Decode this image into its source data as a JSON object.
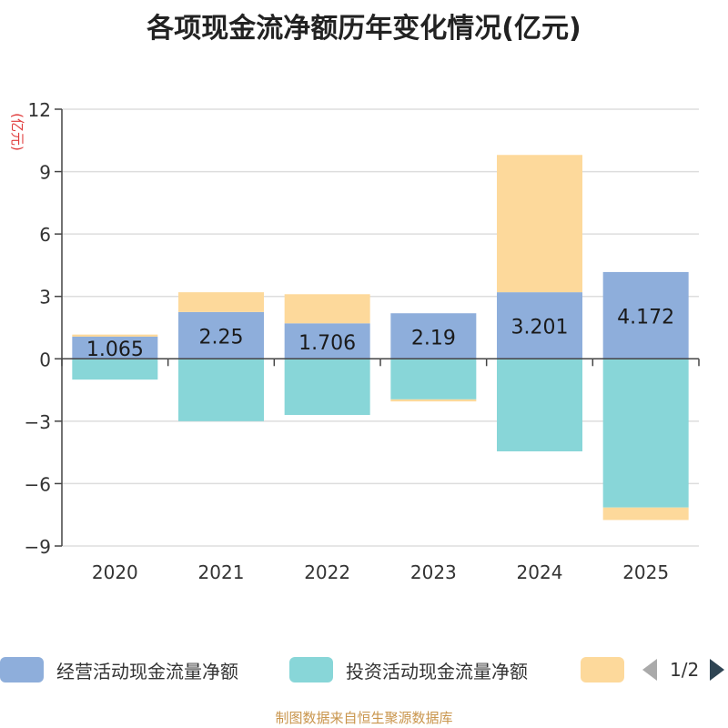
{
  "chart_data": {
    "type": "bar",
    "stacked": true,
    "title": "各项现金流净额历年变化情况(亿元)",
    "ylabel": "(亿元)",
    "categories": [
      "2020",
      "2021",
      "2022",
      "2023",
      "2024",
      "2025"
    ],
    "yticks": [
      12,
      9,
      6,
      3,
      0,
      -3,
      -6,
      -9
    ],
    "ytick_labels": [
      "12",
      "9",
      "6",
      "3",
      "0",
      "−3",
      "−6",
      "−9"
    ],
    "ylim": [
      -9,
      12
    ],
    "series": [
      {
        "name": "经营活动现金流量净额",
        "color": "#8eaedb",
        "values": [
          1.065,
          2.25,
          1.706,
          2.19,
          3.201,
          4.172
        ],
        "labels": [
          "1.065",
          "2.25",
          "1.706",
          "2.19",
          "3.201",
          "4.172"
        ]
      },
      {
        "name": "投资活动现金流量净额",
        "color": "#88d6d8",
        "values": [
          -1.0,
          -3.0,
          -2.7,
          -1.95,
          -4.45,
          -7.15
        ]
      },
      {
        "name": "",
        "color": "#fdd99b",
        "values": [
          0.1,
          0.95,
          1.4,
          -0.1,
          6.6,
          -0.6
        ]
      }
    ],
    "legend": {
      "position": "bottom",
      "page": "1/2"
    }
  },
  "source": "制图数据来自恒生聚源数据库"
}
